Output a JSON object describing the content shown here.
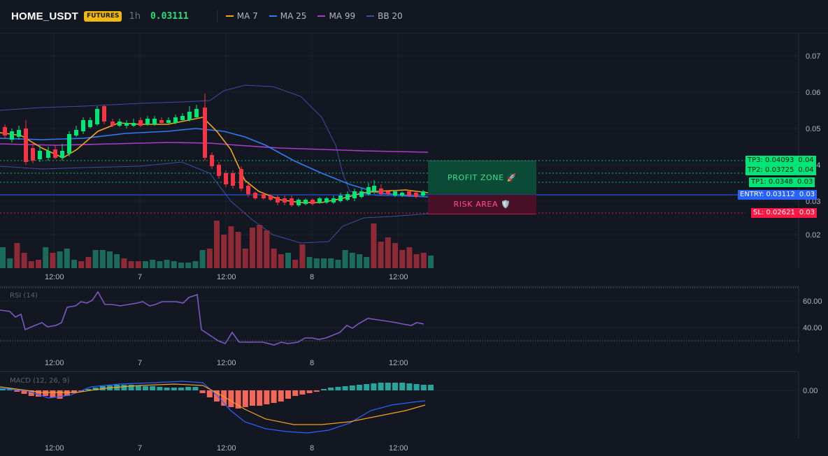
{
  "header": {
    "symbol": "HOME_USDT",
    "badge": "FUTURES",
    "timeframe": "1h",
    "last_price": "0.03111",
    "legend": [
      {
        "label": "MA 7",
        "color": "#f7a21b"
      },
      {
        "label": "MA 25",
        "color": "#2f7df6"
      },
      {
        "label": "MA 99",
        "color": "#a93cc9"
      },
      {
        "label": "BB 20",
        "color": "#3d4fa3"
      }
    ]
  },
  "price_axis": [
    "0.07",
    "0.06",
    "0.05",
    "0.04",
    "0.03",
    "0.02"
  ],
  "time_axis": [
    "12:00",
    "7",
    "12:00",
    "8",
    "12:00"
  ],
  "zones": {
    "profit": "PROFIT ZONE 🚀",
    "risk": "RISK AREA 🛡️"
  },
  "levels": {
    "tp3": {
      "tag": "TP3: 0.04093",
      "axis": "0.04"
    },
    "tp2": {
      "tag": "TP2: 0.03725",
      "axis": "0.04"
    },
    "tp1": {
      "tag": "TP1: 0.0348",
      "axis": "0.03"
    },
    "entry": {
      "tag": "ENTRY: 0.03112",
      "axis": "0.03"
    },
    "sl": {
      "tag": "SL: 0.02621",
      "axis": "0.03"
    }
  },
  "rsi": {
    "title": "RSI (14)",
    "axis": [
      "60.00",
      "40.00"
    ]
  },
  "macd": {
    "title": "MACD (12, 26, 9)",
    "axis": [
      "0.00"
    ]
  },
  "colors": {
    "up": "#26a69a",
    "up_candle": "#00e676",
    "down": "#f23645",
    "background": "#131722"
  }
}
